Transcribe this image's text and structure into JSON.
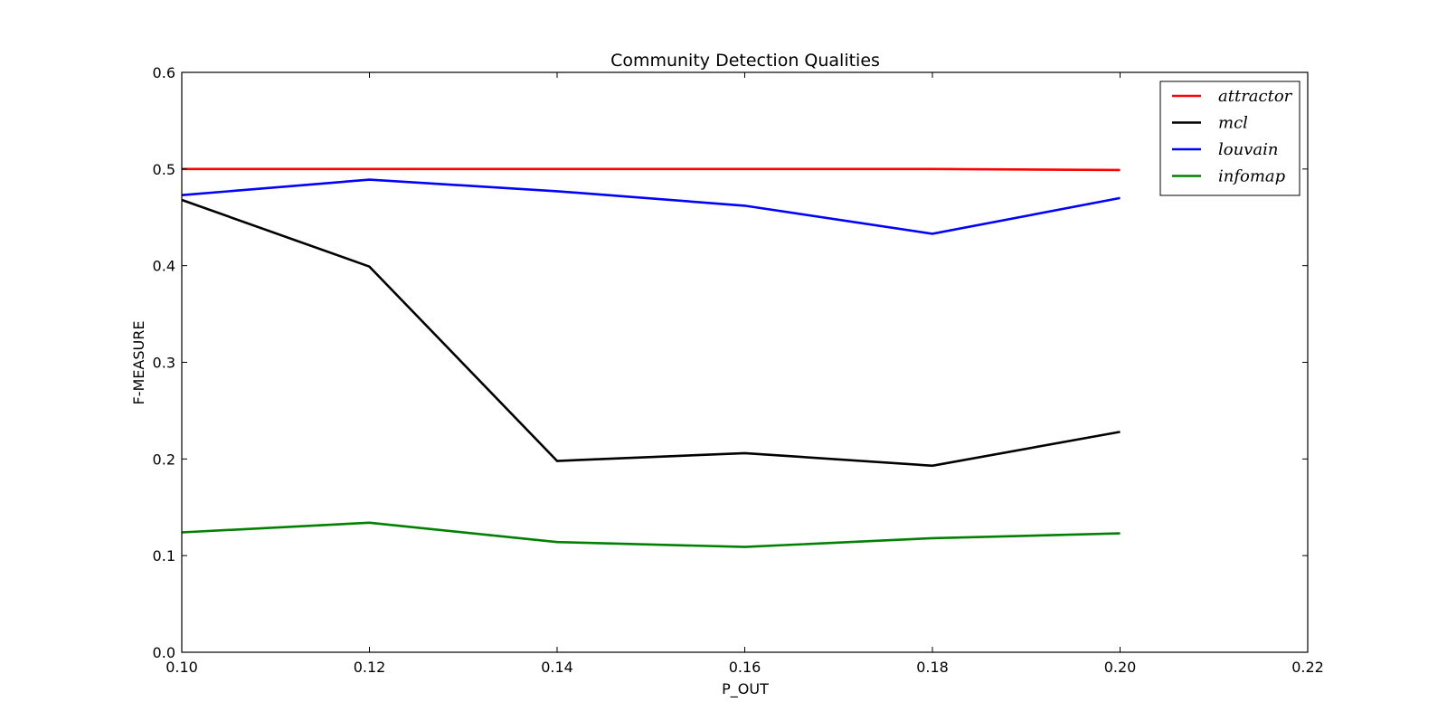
{
  "chart_data": {
    "type": "line",
    "title": "Community Detection Qualities",
    "xlabel": "P_OUT",
    "ylabel": "F-MEASURE",
    "xlim": [
      0.1,
      0.22
    ],
    "ylim": [
      0.0,
      0.6
    ],
    "x_ticks": [
      "0.10",
      "0.12",
      "0.14",
      "0.16",
      "0.18",
      "0.20",
      "0.22"
    ],
    "y_ticks": [
      "0.0",
      "0.1",
      "0.2",
      "0.3",
      "0.4",
      "0.5",
      "0.6"
    ],
    "grid": false,
    "legend_position": "top-right",
    "x": [
      0.1,
      0.12,
      0.14,
      0.16,
      0.18,
      0.2
    ],
    "series": [
      {
        "name": "attractor",
        "color": "#ff0000",
        "values": [
          0.5,
          0.5,
          0.5,
          0.5,
          0.5,
          0.499
        ]
      },
      {
        "name": "mcl",
        "color": "#000000",
        "values": [
          0.468,
          0.399,
          0.198,
          0.206,
          0.193,
          0.228
        ]
      },
      {
        "name": "louvain",
        "color": "#0000ff",
        "values": [
          0.473,
          0.489,
          0.477,
          0.462,
          0.433,
          0.47
        ]
      },
      {
        "name": "infomap",
        "color": "#008000",
        "values": [
          0.124,
          0.134,
          0.114,
          0.109,
          0.118,
          0.123
        ]
      }
    ]
  }
}
